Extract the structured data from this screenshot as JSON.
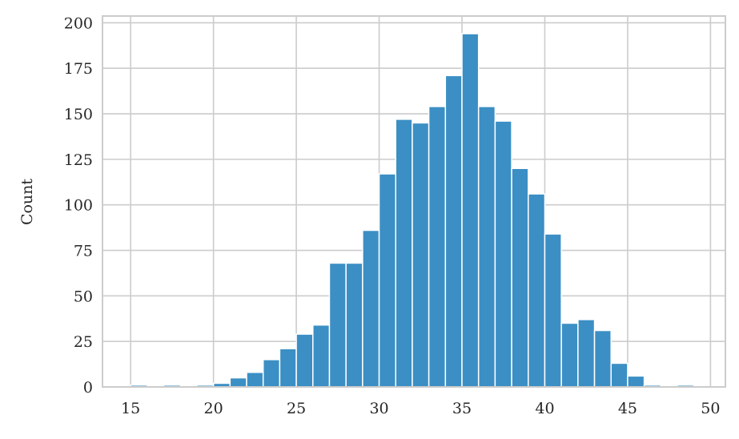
{
  "chart_data": {
    "type": "histogram",
    "ylabel": "Count",
    "bins": [
      15,
      16,
      17,
      18,
      19,
      20,
      21,
      22,
      23,
      24,
      25,
      26,
      27,
      28,
      29,
      30,
      31,
      32,
      33,
      34,
      35,
      36,
      37,
      38,
      39,
      40,
      41,
      42,
      43,
      44,
      45,
      46,
      47,
      48,
      49
    ],
    "values": [
      1,
      0,
      1,
      0,
      1,
      2,
      5,
      8,
      15,
      21,
      29,
      34,
      68,
      68,
      86,
      117,
      147,
      145,
      154,
      171,
      194,
      154,
      146,
      120,
      106,
      84,
      35,
      37,
      31,
      13,
      6,
      1,
      0,
      1
    ],
    "color": "#3b8fc4",
    "xlim": [
      13.3,
      50.9
    ],
    "xticks": [
      15,
      20,
      25,
      30,
      35,
      40,
      45,
      50
    ],
    "ylim": [
      0,
      203.7
    ],
    "yticks": [
      0,
      25,
      50,
      75,
      100,
      125,
      150,
      175,
      200
    ],
    "grid": true
  }
}
